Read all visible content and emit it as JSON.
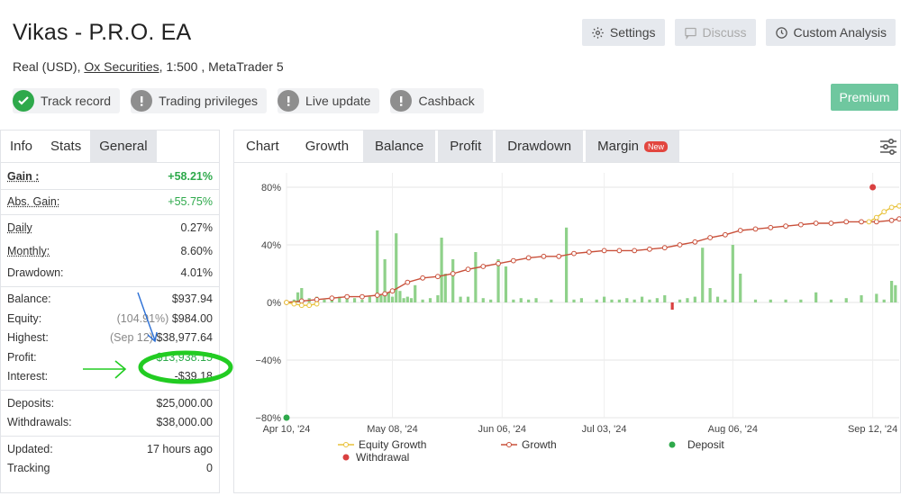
{
  "account": {
    "title": "Vikas - P.R.O. EA",
    "subtitle_prefix": "Real (USD), ",
    "broker": "Ox Securities",
    "subtitle_suffix": ", 1:500 , MetaTrader 5"
  },
  "top_buttons": {
    "settings": "Settings",
    "discuss": "Discuss",
    "custom_analysis": "Custom Analysis",
    "premium": "Premium"
  },
  "badges": [
    {
      "label": "Track record",
      "state": "verified"
    },
    {
      "label": "Trading privileges",
      "state": "unverified"
    },
    {
      "label": "Live update",
      "state": "unverified"
    },
    {
      "label": "Cashback",
      "state": "unverified"
    }
  ],
  "left_tabs": [
    "Info",
    "Stats",
    "General"
  ],
  "stats": {
    "gain": {
      "label": "Gain :",
      "value": "+58.21%"
    },
    "abs_gain": {
      "label": "Abs. Gain:",
      "value": "+55.75%"
    },
    "daily": {
      "label": "Daily",
      "value": "0.27%"
    },
    "monthly": {
      "label": "Monthly:",
      "value": "8.60%"
    },
    "drawdown": {
      "label": "Drawdown:",
      "value": "4.01%"
    },
    "balance": {
      "label": "Balance:",
      "value": "$937.94"
    },
    "equity": {
      "label": "Equity:",
      "note": "(104.91%)",
      "value": "$984.00"
    },
    "highest": {
      "label": "Highest:",
      "note": "(Sep 12)",
      "value": "$38,977.64"
    },
    "profit": {
      "label": "Profit:",
      "value": "$13,938.15"
    },
    "interest": {
      "label": "Interest:",
      "value": "-$39.18"
    },
    "deposits": {
      "label": "Deposits:",
      "value": "$25,000.00"
    },
    "withdrawals": {
      "label": "Withdrawals:",
      "value": "$38,000.00"
    },
    "updated": {
      "label": "Updated:",
      "value": "17 hours ago"
    },
    "tracking": {
      "label": "Tracking",
      "value": "0"
    }
  },
  "right_tabs": {
    "chart": "Chart",
    "growth": "Growth",
    "balance": "Balance",
    "profit": "Profit",
    "drawdown": "Drawdown",
    "margin": "Margin",
    "new_tag": "New"
  },
  "legend": {
    "equity_growth": "Equity Growth",
    "growth": "Growth",
    "deposit": "Deposit",
    "withdrawal": "Withdrawal"
  },
  "colors": {
    "growth_line": "#c9503a",
    "equity_line": "#e8c23a",
    "bar_positive": "#8fd18a",
    "bar_negative": "#d94040",
    "deposit": "#2ea94b",
    "withdrawal": "#d94040",
    "annotation_circle": "#22cc22",
    "annotation_blue": "#2a6fd6"
  },
  "chart_data": {
    "type": "line",
    "ylim": [
      -80,
      90
    ],
    "y_ticks": [
      "80%",
      "40%",
      "0%",
      "−40%",
      "−80%"
    ],
    "y_tick_values": [
      80,
      40,
      0,
      -40,
      -80
    ],
    "x_tick_labels": [
      "Apr 10, '24",
      "May 08, '24",
      "Jun 06, '24",
      "Jul 03, '24",
      "Aug 06, '24",
      "Sep 12, '24"
    ],
    "x_tick_days": [
      0,
      28,
      57,
      84,
      118,
      155
    ],
    "x_range_days": [
      0,
      162
    ],
    "series": [
      {
        "name": "Growth",
        "x": [
          0,
          4,
          8,
          12,
          16,
          20,
          24,
          26,
          28,
          32,
          36,
          40,
          44,
          48,
          52,
          56,
          60,
          64,
          68,
          72,
          76,
          80,
          84,
          88,
          92,
          96,
          100,
          104,
          108,
          112,
          116,
          120,
          124,
          128,
          132,
          136,
          140,
          144,
          148,
          152,
          156,
          160,
          162
        ],
        "values": [
          0,
          1,
          2,
          3,
          4,
          4,
          5,
          6,
          8,
          14,
          17,
          18,
          20,
          23,
          25,
          27,
          29,
          31,
          32,
          32,
          34,
          35,
          36,
          36,
          36,
          37,
          38,
          40,
          42,
          45,
          47,
          50,
          51,
          52,
          53,
          54,
          55,
          55,
          56,
          56,
          56,
          57,
          58
        ]
      },
      {
        "name": "Equity Growth",
        "x": [
          0,
          2,
          4,
          6,
          8,
          154,
          156,
          158,
          160,
          162
        ],
        "values": [
          0,
          -1,
          -2,
          -2,
          -1,
          56,
          59,
          63,
          66,
          67
        ]
      }
    ],
    "daily_bars": {
      "x": [
        2,
        3,
        4,
        6,
        8,
        10,
        12,
        14,
        16,
        18,
        20,
        22,
        24,
        25,
        26,
        27,
        28,
        29,
        30,
        31,
        32,
        33,
        34,
        36,
        38,
        40,
        41,
        42,
        44,
        46,
        48,
        50,
        52,
        54,
        56,
        58,
        60,
        62,
        64,
        66,
        70,
        74,
        76,
        78,
        82,
        84,
        86,
        88,
        90,
        92,
        94,
        96,
        98,
        100,
        102,
        104,
        106,
        108,
        110,
        112,
        114,
        116,
        118,
        120,
        124,
        128,
        132,
        136,
        140,
        144,
        148,
        152,
        156,
        158,
        160,
        161
      ],
      "values": [
        2,
        7,
        10,
        3,
        4,
        2,
        3,
        4,
        3,
        3,
        2,
        4,
        50,
        5,
        30,
        7,
        4,
        48,
        8,
        3,
        4,
        3,
        12,
        2,
        3,
        5,
        45,
        20,
        30,
        4,
        4,
        35,
        3,
        2,
        30,
        25,
        2,
        3,
        2,
        3,
        2,
        52,
        2,
        3,
        2,
        4,
        2,
        2,
        3,
        2,
        4,
        2,
        3,
        5,
        -5,
        2,
        3,
        4,
        38,
        10,
        4,
        2,
        40,
        20,
        2,
        2,
        2,
        2,
        7,
        2,
        3,
        5,
        6,
        2,
        15,
        12
      ]
    },
    "deposits": [
      {
        "x": 0,
        "y": -80
      }
    ],
    "withdrawals": [
      {
        "x": 155,
        "y": 80
      }
    ],
    "legend_position": "bottom"
  }
}
